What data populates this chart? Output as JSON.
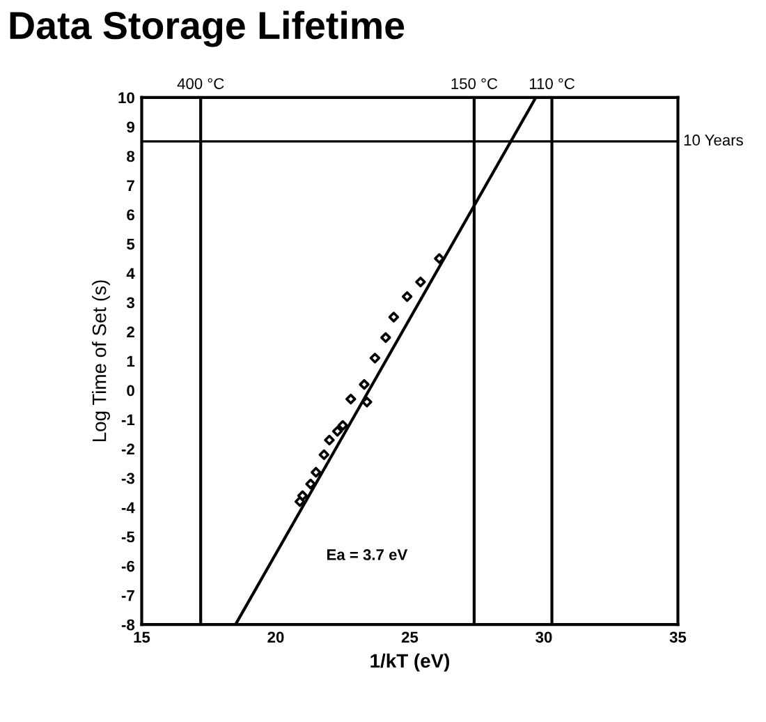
{
  "chart_data": {
    "type": "scatter",
    "title": "Data Storage Lifetime",
    "xlabel": "1/kT (eV)",
    "ylabel": "Log Time of Set (s)",
    "xlim": [
      15,
      35
    ],
    "xticks": [
      15,
      20,
      25,
      30,
      35
    ],
    "ylim": [
      -8,
      10
    ],
    "yticks": [
      10,
      9,
      8,
      7,
      6,
      5,
      4,
      3,
      2,
      1,
      0,
      -1,
      -2,
      -3,
      -4,
      -5,
      -6,
      -7,
      -8
    ],
    "grid": false,
    "legend": false,
    "series": [
      {
        "marker": "diamond",
        "color": "#000000",
        "x": [
          26.1,
          25.4,
          24.9,
          24.4,
          24.1,
          23.7,
          23.3,
          22.8,
          23.4,
          22.5,
          22.3,
          22.0,
          21.8,
          21.5,
          21.3,
          21.0,
          20.9
        ],
        "values": [
          4.5,
          3.7,
          3.2,
          2.5,
          1.8,
          1.1,
          0.2,
          -0.3,
          -0.4,
          -1.2,
          -1.4,
          -1.7,
          -2.2,
          -2.8,
          -3.2,
          -3.6,
          -3.8
        ]
      },
      {
        "type": "line",
        "marker": "none",
        "color": "#000000",
        "x": [
          18.5,
          29.7
        ],
        "values": [
          -8,
          10
        ]
      }
    ],
    "ref_lines": [
      {
        "axis": "x",
        "value": 17.2,
        "label": "400 °C",
        "color": "#000000"
      },
      {
        "axis": "x",
        "value": 27.4,
        "label": "150 °C",
        "color": "#000000"
      },
      {
        "axis": "x",
        "value": 30.3,
        "label": "110 °C",
        "color": "#000000"
      },
      {
        "axis": "y",
        "value": 8.5,
        "label": "10 Years",
        "color": "#000000"
      }
    ],
    "annotations": [
      "Ea = 3.7 eV"
    ]
  }
}
